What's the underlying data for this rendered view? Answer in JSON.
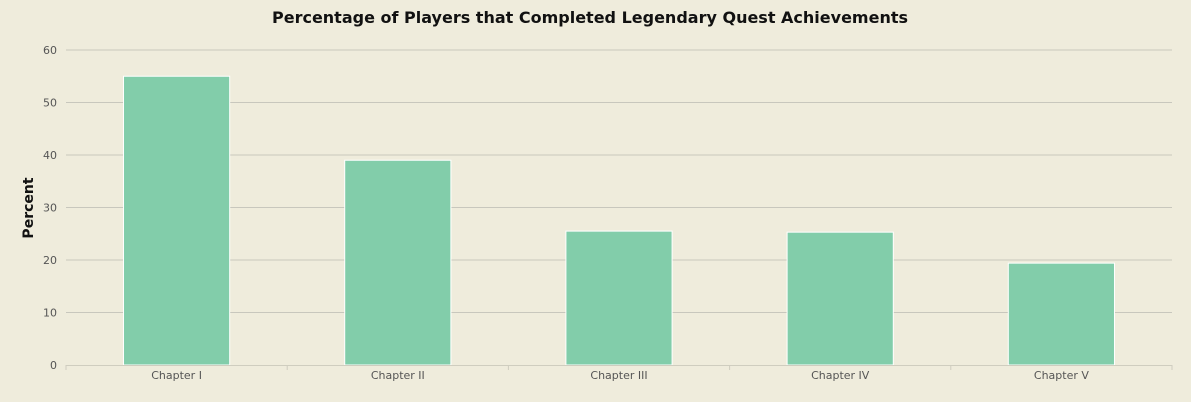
{
  "chart_data": {
    "type": "bar",
    "title": "Percentage of Players that Completed Legendary Quest Achievements",
    "xlabel": "",
    "ylabel": "Percent",
    "categories": [
      "Chapter I",
      "Chapter II",
      "Chapter III",
      "Chapter IV",
      "Chapter V"
    ],
    "values": [
      55,
      39,
      25.5,
      25.3,
      19.4
    ],
    "ylim": [
      0,
      60
    ],
    "yticks": [
      0,
      10,
      20,
      30,
      40,
      50,
      60
    ],
    "grid": true,
    "colors": {
      "background": "#efecdc",
      "bar": "#82cdaa",
      "bar_stroke": "#ffffff",
      "grid": "#c8c7bd",
      "axis": "#cfcdbf"
    }
  }
}
